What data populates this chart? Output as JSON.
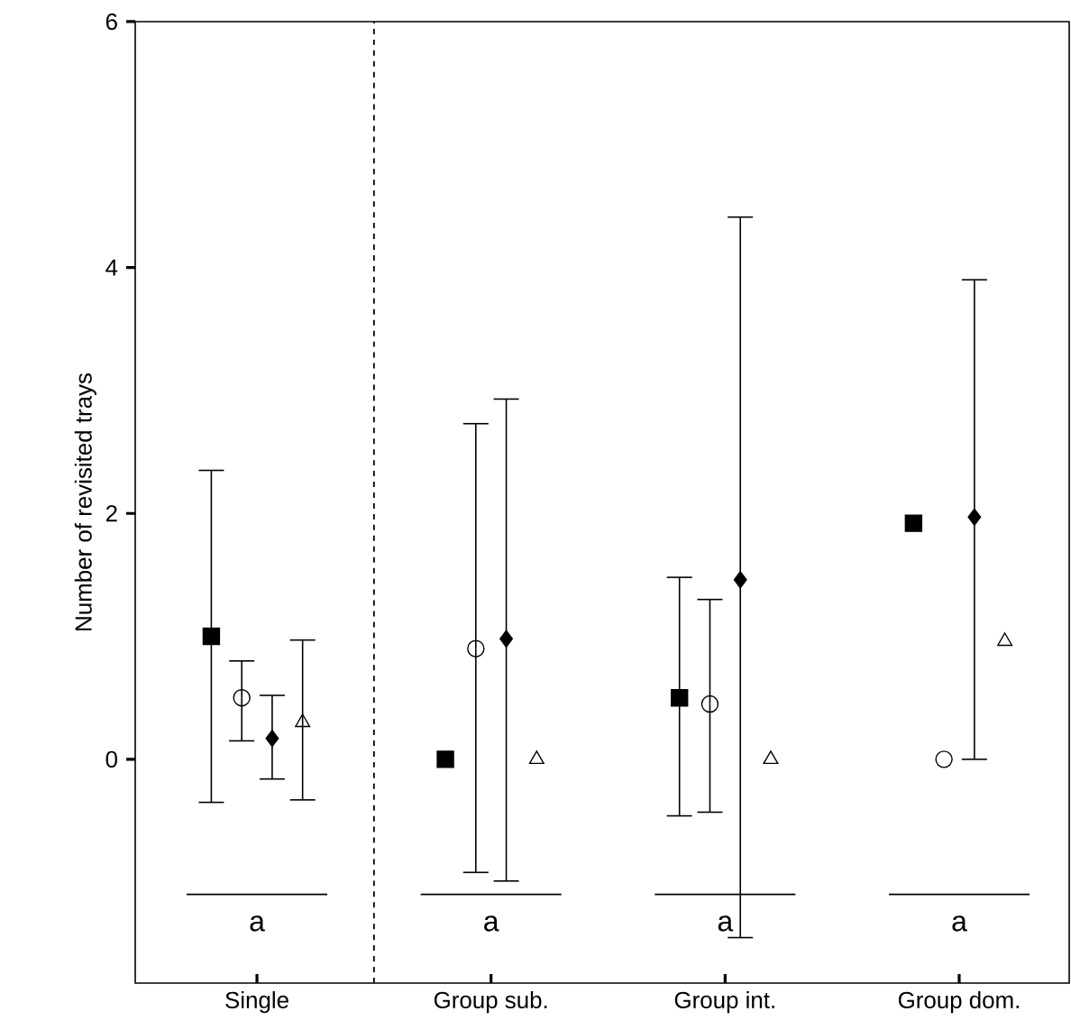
{
  "chart_data": {
    "type": "scatter",
    "ylabel": "Number of revisited trays",
    "categories": [
      "Single",
      "Group sub.",
      "Group int.",
      "Group dom."
    ],
    "series": [
      {
        "color": "#000000",
        "marker": "square",
        "values": [
          1.0,
          0,
          0.5,
          1.92
        ],
        "errors": [
          [
            -0.35,
            2.35
          ],
          null,
          [
            -0.46,
            1.48
          ],
          null
        ]
      },
      {
        "color": "#000000",
        "marker": "circle",
        "values": [
          0.5,
          0.9,
          0.45,
          0
        ],
        "errors": [
          [
            0.15,
            0.8
          ],
          [
            -0.92,
            2.73
          ],
          [
            -0.43,
            1.3
          ],
          null
        ]
      },
      {
        "color": "#000000",
        "marker": "diamond",
        "values": [
          0.17,
          0.98,
          1.46,
          1.97
        ],
        "errors": [
          [
            -0.16,
            0.52
          ],
          [
            -0.99,
            2.93
          ],
          [
            -1.45,
            4.41
          ],
          [
            0,
            3.9
          ]
        ]
      },
      {
        "color": "#000000",
        "marker": "triangle",
        "values": [
          0.3,
          0,
          0,
          0.96
        ],
        "errors": [
          [
            -0.33,
            0.97
          ],
          null,
          null,
          null
        ]
      }
    ],
    "ylim": [
      -1.82,
      6
    ],
    "yticks": [
      0,
      2,
      4,
      6
    ],
    "annotations": [
      "a",
      "a",
      "a",
      "a"
    ],
    "grid": false
  }
}
